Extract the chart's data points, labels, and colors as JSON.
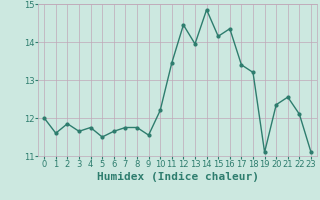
{
  "x": [
    0,
    1,
    2,
    3,
    4,
    5,
    6,
    7,
    8,
    9,
    10,
    11,
    12,
    13,
    14,
    15,
    16,
    17,
    18,
    19,
    20,
    21,
    22,
    23
  ],
  "y": [
    12.0,
    11.6,
    11.85,
    11.65,
    11.75,
    11.5,
    11.65,
    11.75,
    11.75,
    11.55,
    12.2,
    13.45,
    14.45,
    13.95,
    14.85,
    14.15,
    14.35,
    13.4,
    13.2,
    11.1,
    12.35,
    12.55,
    12.1,
    11.1
  ],
  "xlabel": "Humidex (Indice chaleur)",
  "ylim": [
    11.0,
    15.0
  ],
  "xlim": [
    -0.5,
    23.5
  ],
  "yticks": [
    11,
    12,
    13,
    14,
    15
  ],
  "xticks": [
    0,
    1,
    2,
    3,
    4,
    5,
    6,
    7,
    8,
    9,
    10,
    11,
    12,
    13,
    14,
    15,
    16,
    17,
    18,
    19,
    20,
    21,
    22,
    23
  ],
  "line_color": "#2e7d6e",
  "marker_color": "#2e7d6e",
  "bg_color": "#cce8e0",
  "grid_color": "#c0a8b8",
  "tick_color": "#2e7d6e",
  "xlabel_color": "#2e7d6e",
  "xlabel_fontsize": 8,
  "tick_fontsize": 6,
  "line_width": 1.0,
  "marker_size": 2.0
}
